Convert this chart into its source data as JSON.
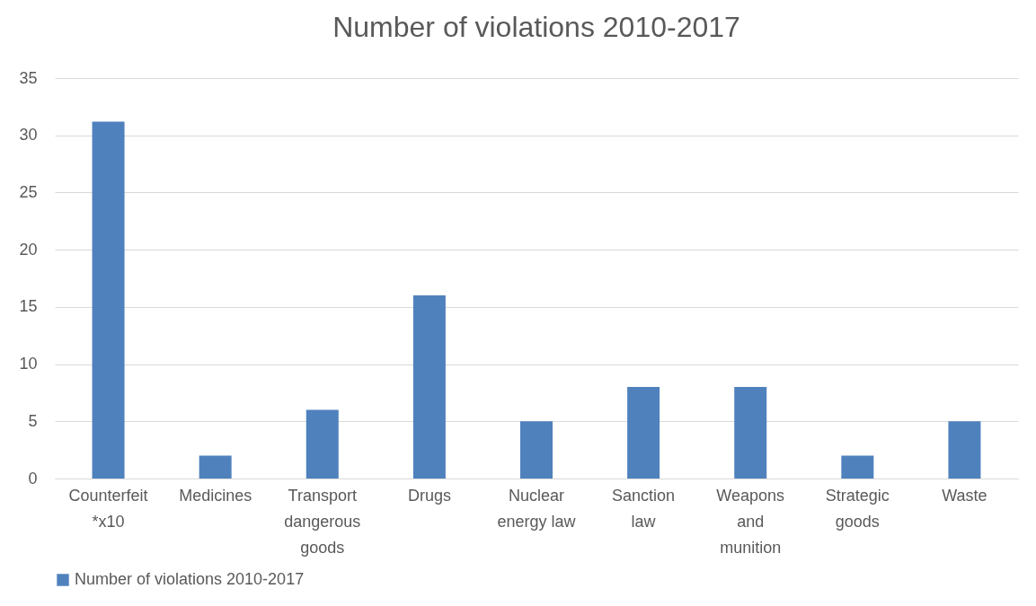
{
  "chart_data": {
    "type": "bar",
    "title": "Number of violations 2010-2017",
    "categories": [
      "Counterfeit *x10",
      "Medicines",
      "Transport dangerous goods",
      "Drugs",
      "Nuclear energy law",
      "Sanction law",
      "Weapons and munition",
      "Strategic goods",
      "Waste"
    ],
    "series": [
      {
        "name": "Number of violations 2010-2017",
        "color": "#4f81bd",
        "values": [
          31.2,
          2,
          6,
          16,
          5,
          8,
          8,
          2,
          5
        ]
      }
    ],
    "ylim": [
      0,
      35
    ],
    "yticks": [
      0,
      5,
      10,
      15,
      20,
      25,
      30,
      35
    ],
    "grid": "y",
    "legend": "bottom"
  }
}
